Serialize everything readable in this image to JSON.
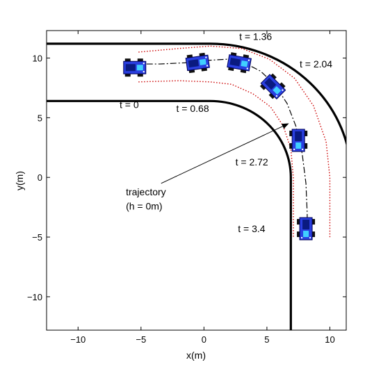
{
  "chart_data": {
    "type": "line",
    "title": "",
    "xlabel": "x(m)",
    "ylabel": "y(m)",
    "xlim": [
      -12.5,
      11.3
    ],
    "ylim": [
      -12.8,
      12.3
    ],
    "xticks": [
      -10,
      -5,
      0,
      5,
      10
    ],
    "yticks": [
      -10,
      -5,
      0,
      5,
      10
    ],
    "xtick_labels": [
      "−10",
      "−5",
      "0",
      "5",
      "10"
    ],
    "ytick_labels": [
      "−10",
      "−5",
      "0",
      "5",
      "10"
    ],
    "grid": false,
    "road": {
      "corner_center": [
        0.5,
        0
      ],
      "inner_radius": 6.4,
      "outer_radius": 11.2,
      "color": "#000000"
    },
    "series": [
      {
        "style": "dashdot",
        "color": "#000000",
        "x": [
          -5.5,
          -3.5,
          -1.5,
          0.2,
          1.8,
          3.2,
          4.5,
          5.6,
          6.6,
          7.3,
          7.8,
          8.1,
          8.2,
          8.2
        ],
        "y": [
          9.5,
          9.5,
          9.6,
          9.8,
          9.9,
          9.6,
          8.9,
          7.8,
          6.2,
          4.3,
          2.0,
          -0.5,
          -3.0,
          -4.8
        ]
      },
      {
        "style": "dotted",
        "color": "#cc0000",
        "x": [
          -5.2,
          -2,
          0.5,
          3.0,
          5.2,
          7.2,
          8.7,
          9.7,
          10.0,
          10.0
        ],
        "y": [
          10.5,
          10.8,
          11.0,
          10.8,
          9.9,
          8.3,
          6.0,
          3.0,
          0.0,
          -5.0
        ]
      },
      {
        "style": "dotted",
        "color": "#cc0000",
        "x": [
          -5.2,
          -2,
          0.5,
          2.2,
          3.9,
          5.3,
          6.3,
          6.9,
          7.1,
          7.1
        ],
        "y": [
          8.0,
          8.1,
          8.0,
          7.8,
          7.0,
          5.9,
          4.3,
          2.4,
          0.0,
          -5.0
        ]
      }
    ],
    "vehicles": [
      {
        "x": -5.5,
        "y": 9.2,
        "heading": 0
      },
      {
        "x": -0.5,
        "y": 9.6,
        "heading": 8
      },
      {
        "x": 2.8,
        "y": 9.6,
        "heading": -10
      },
      {
        "x": 5.5,
        "y": 7.6,
        "heading": -45
      },
      {
        "x": 7.5,
        "y": 3.1,
        "heading": -90
      },
      {
        "x": 8.1,
        "y": -4.3,
        "heading": -90
      }
    ],
    "annotations": [
      {
        "text": "t = 0",
        "x": -6.7,
        "y": 5.8
      },
      {
        "text": "t = 0.68",
        "x": -2.2,
        "y": 5.5
      },
      {
        "text": "t = 1.36",
        "x": 2.8,
        "y": 11.5
      },
      {
        "text": "t = 2.04",
        "x": 7.6,
        "y": 9.2
      },
      {
        "text": "t = 2.72",
        "x": 2.5,
        "y": 1.0
      },
      {
        "text": "t = 3.4",
        "x": 2.7,
        "y": -4.6
      },
      {
        "text": "trajectory",
        "x": -6.2,
        "y": -1.5
      },
      {
        "text": "(h = 0m)",
        "x": -6.2,
        "y": -2.7
      }
    ],
    "arrow": {
      "from": [
        -3.4,
        -0.5
      ],
      "to": [
        6.7,
        4.5
      ]
    }
  }
}
